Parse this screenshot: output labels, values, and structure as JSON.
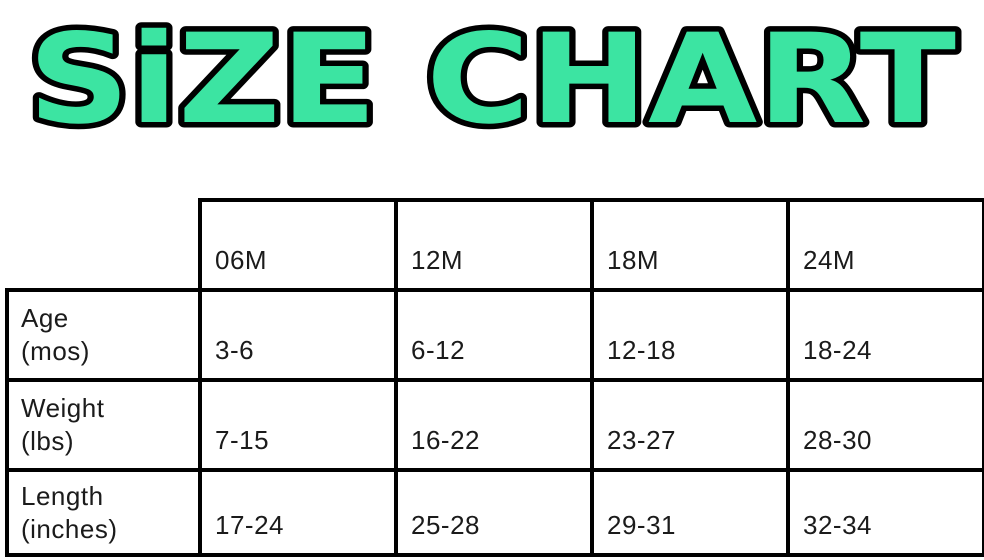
{
  "title": {
    "text": "SiZE CHART",
    "fill_color": "#3CE4A2",
    "outline_color": "#000000"
  },
  "table": {
    "corner": "",
    "headers": [
      "06M",
      "12M",
      "18M",
      "24M"
    ],
    "rows": [
      {
        "name": "Age",
        "unit": "(mos)",
        "values": [
          "3-6",
          "6-12",
          "12-18",
          "18-24"
        ]
      },
      {
        "name": "Weight",
        "unit": "(lbs)",
        "values": [
          "7-15",
          "16-22",
          "23-27",
          "28-30"
        ]
      },
      {
        "name": "Length",
        "unit": "(inches)",
        "values": [
          "17-24",
          "25-28",
          "29-31",
          "32-34"
        ]
      }
    ]
  },
  "chart_data": {
    "type": "table",
    "title": "SiZE CHART",
    "columns": [
      "",
      "06M",
      "12M",
      "18M",
      "24M"
    ],
    "rows": [
      {
        "label": "Age (mos)",
        "values": [
          "3-6",
          "6-12",
          "12-18",
          "18-24"
        ]
      },
      {
        "label": "Weight (lbs)",
        "values": [
          "7-15",
          "16-22",
          "23-27",
          "28-30"
        ]
      },
      {
        "label": "Length (inches)",
        "values": [
          "17-24",
          "25-28",
          "29-31",
          "32-34"
        ]
      }
    ],
    "layout": {
      "grid": true,
      "header_corner_empty": true,
      "text_color": "#1b1b1b",
      "border_color": "#000000"
    }
  }
}
